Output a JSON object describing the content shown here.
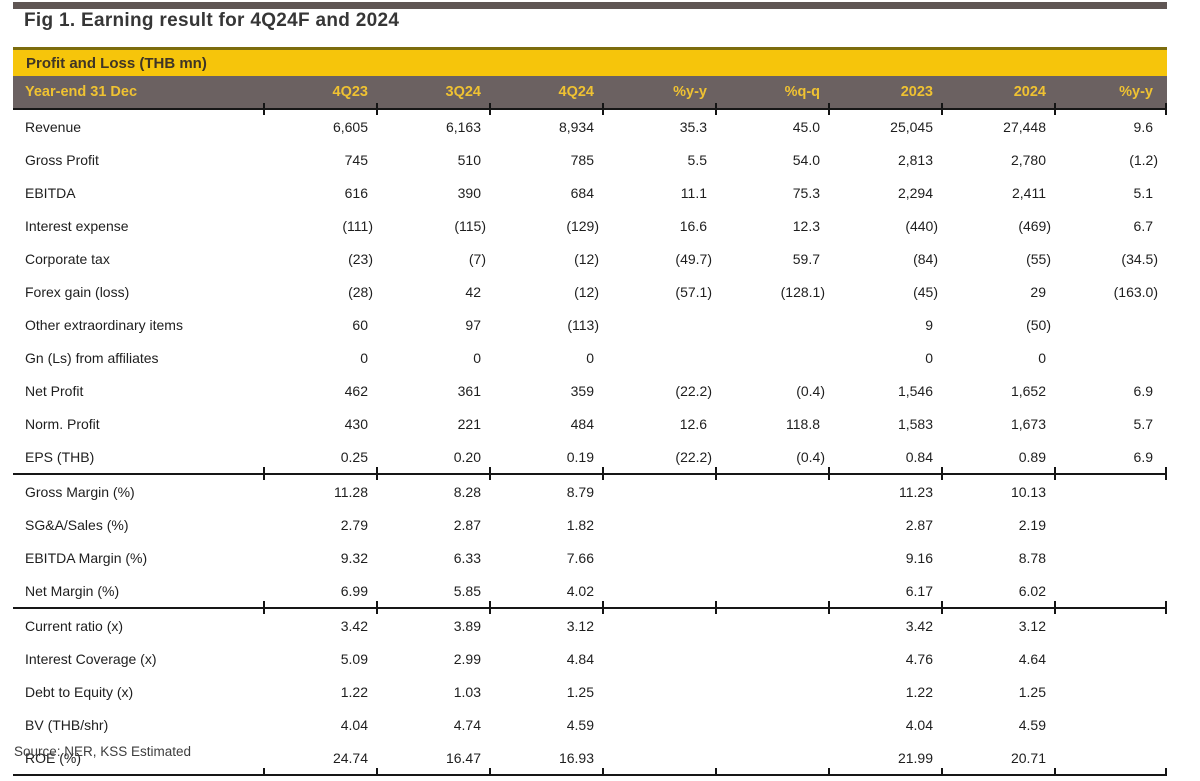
{
  "figure": {
    "title": "Fig 1. Earning result for 4Q24F and 2024",
    "section_header": "Profit and Loss (THB mn)",
    "source": "Source: NER, KSS Estimated"
  },
  "colors": {
    "accent-yellow": "#F6C50B",
    "accent-yellow-dark": "#7C6C0C",
    "band-text": "#3F3526",
    "header-brown": "#6B6161",
    "header-gold": "#EFC232",
    "top-bar": "#5F5654"
  },
  "table": {
    "columns": [
      "Year-end 31 Dec",
      "4Q23",
      "3Q24",
      "4Q24",
      "%y-y",
      "%q-q",
      "2023",
      "2024",
      "%y-y"
    ],
    "sections": [
      {
        "name": "profit-and-loss",
        "rows": [
          {
            "label": "Revenue",
            "values": [
              "6,605",
              "6,163",
              "8,934",
              "35.3",
              "45.0",
              "25,045",
              "27,448",
              "9.6"
            ]
          },
          {
            "label": "Gross Profit",
            "values": [
              "745",
              "510",
              "785",
              "5.5",
              "54.0",
              "2,813",
              "2,780",
              "(1.2)"
            ]
          },
          {
            "label": "EBITDA",
            "values": [
              "616",
              "390",
              "684",
              "11.1",
              "75.3",
              "2,294",
              "2,411",
              "5.1"
            ]
          },
          {
            "label": "Interest expense",
            "values": [
              "(111)",
              "(115)",
              "(129)",
              "16.6",
              "12.3",
              "(440)",
              "(469)",
              "6.7"
            ]
          },
          {
            "label": "Corporate tax",
            "values": [
              "(23)",
              "(7)",
              "(12)",
              "(49.7)",
              "59.7",
              "(84)",
              "(55)",
              "(34.5)"
            ]
          },
          {
            "label": "Forex gain (loss)",
            "values": [
              "(28)",
              "42",
              "(12)",
              "(57.1)",
              "(128.1)",
              "(45)",
              "29",
              "(163.0)"
            ]
          },
          {
            "label": "Other extraordinary items",
            "values": [
              "60",
              "97",
              "(113)",
              "",
              "",
              "9",
              "(50)",
              ""
            ]
          },
          {
            "label": "Gn (Ls) from affiliates",
            "values": [
              "0",
              "0",
              "0",
              "",
              "",
              "0",
              "0",
              ""
            ]
          },
          {
            "label": "Net Profit",
            "values": [
              "462",
              "361",
              "359",
              "(22.2)",
              "(0.4)",
              "1,546",
              "1,652",
              "6.9"
            ]
          },
          {
            "label": "Norm. Profit",
            "values": [
              "430",
              "221",
              "484",
              "12.6",
              "118.8",
              "1,583",
              "1,673",
              "5.7"
            ]
          },
          {
            "label": "EPS (THB)",
            "values": [
              "0.25",
              "0.20",
              "0.19",
              "(22.2)",
              "(0.4)",
              "0.84",
              "0.89",
              "6.9"
            ]
          }
        ]
      },
      {
        "name": "margins",
        "rows": [
          {
            "label": "Gross Margin (%)",
            "values": [
              "11.28",
              "8.28",
              "8.79",
              "",
              "",
              "11.23",
              "10.13",
              ""
            ]
          },
          {
            "label": "SG&A/Sales (%)",
            "values": [
              "2.79",
              "2.87",
              "1.82",
              "",
              "",
              "2.87",
              "2.19",
              ""
            ]
          },
          {
            "label": "EBITDA Margin (%)",
            "values": [
              "9.32",
              "6.33",
              "7.66",
              "",
              "",
              "9.16",
              "8.78",
              ""
            ]
          },
          {
            "label": "Net Margin (%)",
            "values": [
              "6.99",
              "5.85",
              "4.02",
              "",
              "",
              "6.17",
              "6.02",
              ""
            ]
          }
        ]
      },
      {
        "name": "ratios",
        "rows": [
          {
            "label": "Current ratio (x)",
            "values": [
              "3.42",
              "3.89",
              "3.12",
              "",
              "",
              "3.42",
              "3.12",
              ""
            ]
          },
          {
            "label": "Interest Coverage (x)",
            "values": [
              "5.09",
              "2.99",
              "4.84",
              "",
              "",
              "4.76",
              "4.64",
              ""
            ]
          },
          {
            "label": "Debt to Equity (x)",
            "values": [
              "1.22",
              "1.03",
              "1.25",
              "",
              "",
              "1.22",
              "1.25",
              ""
            ]
          },
          {
            "label": "BV (THB/shr)",
            "values": [
              "4.04",
              "4.74",
              "4.59",
              "",
              "",
              "4.04",
              "4.59",
              ""
            ]
          },
          {
            "label": "ROE (%)",
            "values": [
              "24.74",
              "16.47",
              "16.93",
              "",
              "",
              "21.99",
              "20.71",
              ""
            ]
          }
        ]
      }
    ]
  }
}
